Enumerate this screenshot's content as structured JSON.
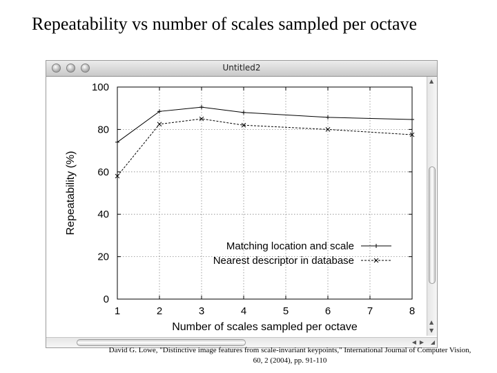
{
  "slide": {
    "title": "Repeatability vs number of scales sampled per octave",
    "citation": "David G. Lowe, \"Distinctive image features from scale-invariant keypoints,\" International Journal of Computer Vision, 60, 2 (2004), pp. 91-110"
  },
  "window": {
    "title": "Untitled2",
    "controls": [
      "close-button",
      "minimize-button",
      "zoom-button"
    ]
  },
  "chart_data": {
    "type": "line",
    "title": "",
    "xlabel": "Number of scales sampled per octave",
    "ylabel": "Repeatability (%)",
    "xlim": [
      1,
      8
    ],
    "ylim": [
      0,
      100
    ],
    "xticks": [
      1,
      2,
      3,
      4,
      5,
      6,
      7,
      8
    ],
    "yticks": [
      0,
      20,
      40,
      60,
      80,
      100
    ],
    "grid": true,
    "legend_position": "center-right",
    "x": [
      1,
      2,
      3,
      4,
      6,
      8
    ],
    "series": [
      {
        "name": "Matching location and scale",
        "values": [
          74,
          88.5,
          90.5,
          88,
          85.7,
          84.7
        ],
        "marker": "+",
        "line": "solid",
        "color": "#000000"
      },
      {
        "name": "Nearest descriptor in database",
        "values": [
          58,
          82.5,
          85,
          82,
          80,
          77.5
        ],
        "marker": "x",
        "line": "dashed",
        "color": "#000000"
      }
    ]
  }
}
